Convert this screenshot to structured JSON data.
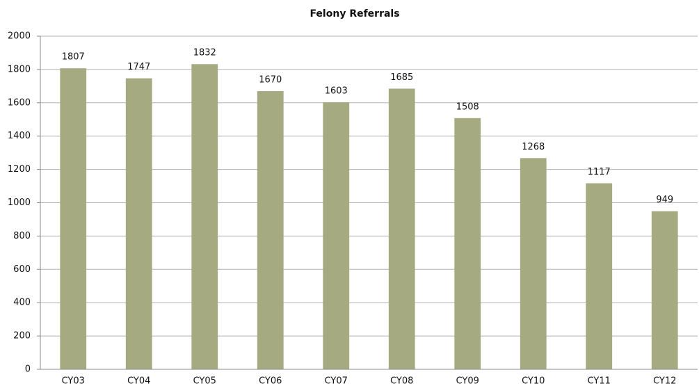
{
  "chart_data": {
    "type": "bar",
    "title": "Felony Referrals",
    "categories": [
      "CY03",
      "CY04",
      "CY05",
      "CY06",
      "CY07",
      "CY08",
      "CY09",
      "CY10",
      "CY11",
      "CY12"
    ],
    "values": [
      1807,
      1747,
      1832,
      1670,
      1603,
      1685,
      1508,
      1268,
      1117,
      949
    ],
    "color": "#a5aa80",
    "ylim": [
      0,
      2000
    ],
    "yticks": [
      0,
      200,
      400,
      600,
      800,
      1000,
      1200,
      1400,
      1600,
      1800,
      2000
    ],
    "grid": true,
    "data_labels": true
  }
}
